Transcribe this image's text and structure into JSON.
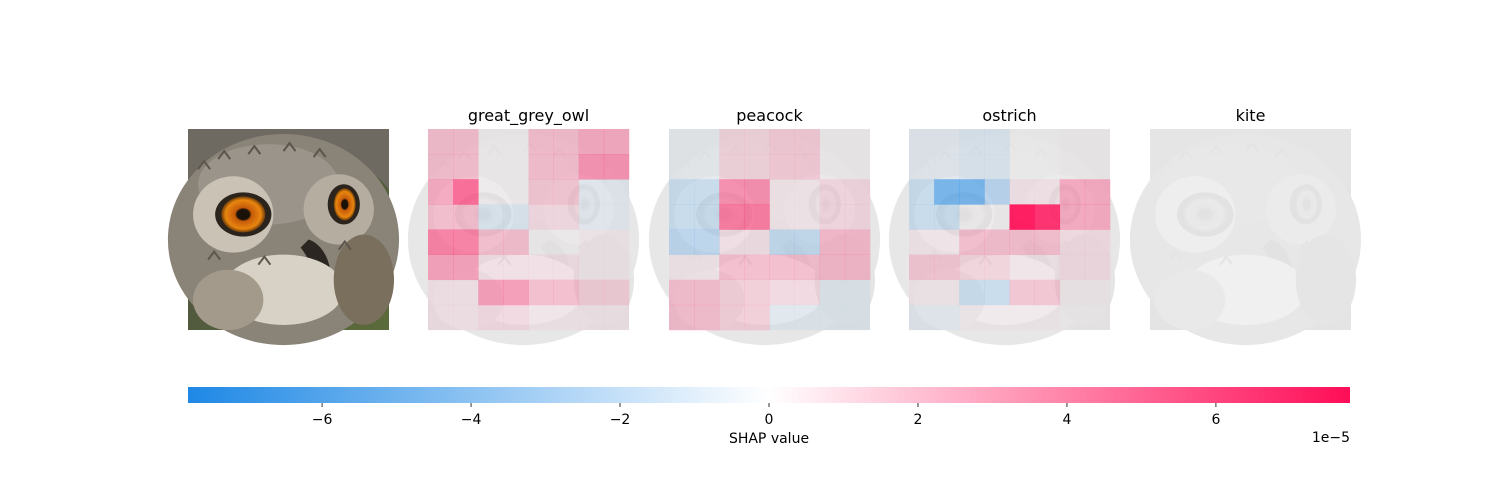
{
  "chart_data": {
    "type": "heatmap",
    "grid_rows": 8,
    "grid_cols": 8,
    "original_image": {
      "subject": "owl-photo"
    },
    "panels": [
      {
        "title": "great_grey_owl",
        "values": [
          [
            1.8,
            1.8,
            0.1,
            0.1,
            1.8,
            1.8,
            2.5,
            2.5
          ],
          [
            1.8,
            1.8,
            0.1,
            0.1,
            1.8,
            1.8,
            3.3,
            3.3
          ],
          [
            2.5,
            4.8,
            0.1,
            0.1,
            1.5,
            1.5,
            -0.5,
            -0.5
          ],
          [
            1.8,
            1.8,
            -0.8,
            -0.8,
            0.8,
            0.8,
            -0.5,
            -0.5
          ],
          [
            4.0,
            4.0,
            1.8,
            1.8,
            0.1,
            0.1,
            0.3,
            0.3
          ],
          [
            2.8,
            2.8,
            0.6,
            0.6,
            0.6,
            0.6,
            0.3,
            0.3
          ],
          [
            0.5,
            0.5,
            3.0,
            3.0,
            1.8,
            1.8,
            1.2,
            1.2
          ],
          [
            0.5,
            0.5,
            0.8,
            0.8,
            0.4,
            0.4,
            0.4,
            0.4
          ]
        ]
      },
      {
        "title": "peacock",
        "values": [
          [
            -0.3,
            -0.3,
            1.0,
            1.0,
            1.3,
            1.3,
            0.1,
            0.1
          ],
          [
            -0.3,
            -0.3,
            1.0,
            1.0,
            1.3,
            1.3,
            0.1,
            0.1
          ],
          [
            -1.5,
            -1.5,
            3.5,
            3.5,
            0.4,
            0.4,
            0.9,
            0.9
          ],
          [
            -1.5,
            -1.5,
            4.2,
            4.2,
            0.4,
            0.4,
            0.9,
            0.9
          ],
          [
            -2.0,
            -2.0,
            0.6,
            0.6,
            -1.8,
            -1.8,
            2.0,
            2.0
          ],
          [
            0.4,
            0.4,
            1.8,
            1.8,
            1.8,
            1.8,
            2.0,
            2.0
          ],
          [
            1.8,
            1.8,
            1.2,
            1.2,
            0.8,
            0.8,
            -0.6,
            -0.6
          ],
          [
            1.8,
            1.8,
            1.2,
            1.2,
            -0.6,
            -0.6,
            -0.6,
            -0.6
          ]
        ]
      },
      {
        "title": "ostrich",
        "values": [
          [
            -0.5,
            -0.5,
            -0.8,
            -0.8,
            0.0,
            0.0,
            0.1,
            0.1
          ],
          [
            -0.5,
            -0.5,
            -0.8,
            -0.8,
            0.0,
            0.0,
            0.1,
            0.1
          ],
          [
            -1.5,
            -4.8,
            -4.8,
            -2.2,
            0.5,
            0.5,
            2.5,
            2.5
          ],
          [
            -1.5,
            -1.5,
            0.1,
            0.1,
            7.8,
            7.0,
            2.5,
            2.5
          ],
          [
            0.4,
            0.4,
            1.8,
            1.8,
            1.8,
            1.8,
            0.7,
            0.7
          ],
          [
            1.5,
            1.5,
            1.0,
            1.0,
            0.4,
            0.4,
            0.7,
            0.7
          ],
          [
            0.3,
            0.3,
            -1.5,
            -1.5,
            1.5,
            1.5,
            0.2,
            0.2
          ],
          [
            -0.5,
            -0.5,
            0.2,
            0.2,
            0.2,
            0.2,
            0.1,
            0.1
          ]
        ]
      },
      {
        "title": "kite",
        "values": [
          [
            0,
            0,
            0,
            0,
            0,
            0,
            0,
            0
          ],
          [
            0,
            0,
            0,
            0,
            0,
            0,
            0,
            0
          ],
          [
            0,
            0,
            0,
            0,
            0,
            0,
            0,
            0
          ],
          [
            0,
            0,
            0,
            0,
            0,
            0,
            0,
            0
          ],
          [
            0,
            0,
            0,
            0,
            0,
            0,
            0,
            0
          ],
          [
            0,
            0,
            0,
            0,
            0,
            0,
            0,
            0
          ],
          [
            0,
            0,
            0,
            0,
            0,
            0,
            0,
            0
          ],
          [
            0,
            0,
            0,
            0,
            0,
            0,
            0,
            0
          ]
        ]
      }
    ],
    "colorbar": {
      "vmin": -7.8,
      "vmax": 7.8,
      "ticks": [
        -6,
        -4,
        -2,
        0,
        2,
        4,
        6
      ],
      "tick_labels": [
        "−6",
        "−4",
        "−2",
        "0",
        "2",
        "4",
        "6"
      ],
      "label": "SHAP value",
      "offset_text": "1e−5",
      "negative_color": "#1e88e5",
      "positive_color": "#ff0d57"
    }
  }
}
